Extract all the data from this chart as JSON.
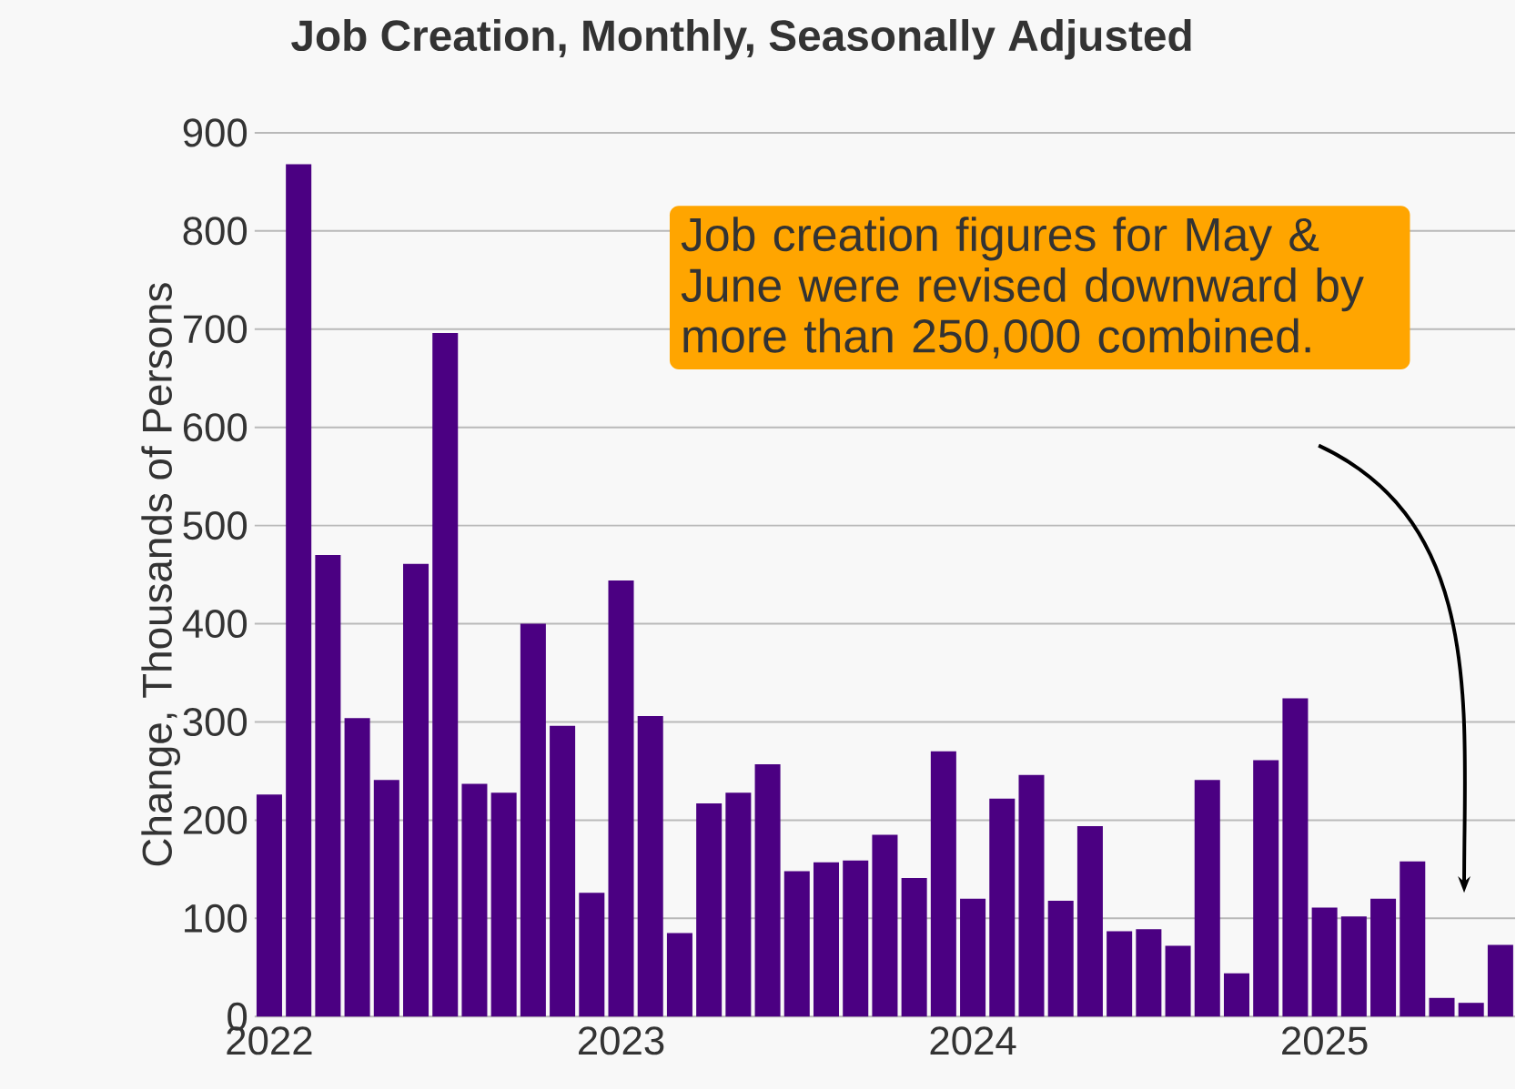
{
  "chart_data": {
    "type": "bar",
    "title": "Job Creation, Monthly, Seasonally Adjusted",
    "ylabel": "Change, Thousands of Persons",
    "categories": [
      "2022",
      null,
      null,
      null,
      null,
      null,
      null,
      null,
      null,
      null,
      null,
      null,
      "2023",
      null,
      null,
      null,
      null,
      null,
      null,
      null,
      null,
      null,
      null,
      null,
      "2024",
      null,
      null,
      null,
      null,
      null,
      null,
      null,
      null,
      null,
      null,
      null,
      "2025",
      null,
      null,
      null,
      null,
      null,
      null
    ],
    "values": [
      226,
      868,
      470,
      304,
      241,
      461,
      696,
      237,
      228,
      400,
      296,
      126,
      444,
      306,
      85,
      217,
      228,
      257,
      148,
      157,
      159,
      185,
      141,
      270,
      120,
      222,
      246,
      118,
      194,
      87,
      89,
      72,
      241,
      44,
      261,
      324,
      111,
      102,
      120,
      158,
      19,
      14,
      73
    ],
    "color": "#4b0082",
    "ylim": [
      0,
      900
    ],
    "yticks": [
      0,
      100,
      200,
      300,
      400,
      500,
      600,
      700,
      800,
      900
    ],
    "grid": "y",
    "annotations": [
      "Job creation figures for May & June were revised downward by more than 250,000 combined."
    ]
  }
}
